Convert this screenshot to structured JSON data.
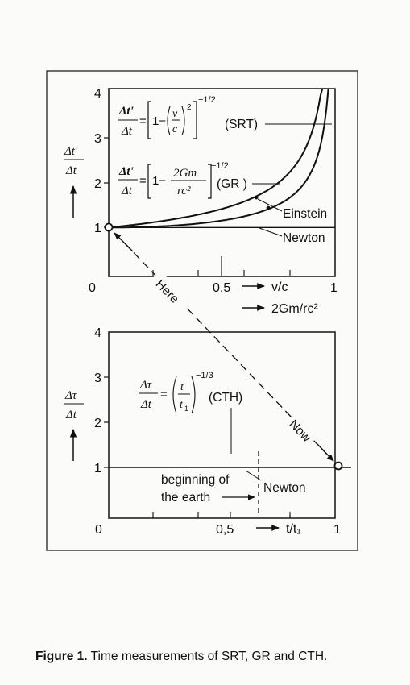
{
  "caption": {
    "label": "Figure 1.",
    "text": "Time measurements of SRT, GR and CTH."
  },
  "chart_data": [
    {
      "type": "line",
      "xlim": [
        0,
        1
      ],
      "ylim": [
        0,
        4
      ],
      "x_ticks": [
        "0",
        "0,5",
        "1"
      ],
      "y_ticks": [
        "1",
        "2",
        "3",
        "4"
      ],
      "ylabel_num": "Δt'",
      "ylabel_den": "Δt",
      "xlabel_1": "v/c",
      "xlabel_2": "2Gm/rc²",
      "series": [
        {
          "name": "SRT",
          "formula": "Δt'/Δt = [1 − (v/c)²]^−1/2",
          "x": [
            0,
            0.2,
            0.4,
            0.6,
            0.7,
            0.8,
            0.9,
            0.95,
            0.98
          ],
          "y": [
            1.0,
            1.021,
            1.091,
            1.25,
            1.4,
            1.667,
            2.294,
            3.203,
            5.025
          ]
        },
        {
          "name": "GR",
          "formula": "Δt'/Δt = [1 − 2Gm/rc²]^−1/2",
          "x": [
            0,
            0.2,
            0.4,
            0.6,
            0.7,
            0.8,
            0.9,
            0.95,
            0.98
          ],
          "y": [
            1.0,
            1.118,
            1.291,
            1.581,
            1.826,
            2.236,
            3.162,
            4.472,
            7.071
          ]
        },
        {
          "name": "Newton",
          "x": [
            0,
            1
          ],
          "y": [
            1,
            1
          ]
        }
      ],
      "annotations": {
        "srt": "(SRT)",
        "gr": "(GR )",
        "einstein": "Einstein",
        "newton": "Newton"
      },
      "formula_srt": {
        "lhs_num": "Δt'",
        "lhs_den": "Δt",
        "eq": "=",
        "one": "1−",
        "v": "v",
        "c": "c",
        "sq": "2",
        "exp": "−1/2"
      },
      "formula_gr": {
        "lhs_num": "Δt'",
        "lhs_den": "Δt",
        "eq": "=",
        "one": "1−",
        "num": "2Gm",
        "den": "rc²",
        "exp": "−1/2"
      }
    },
    {
      "type": "line",
      "xlim": [
        0,
        1
      ],
      "ylim": [
        0,
        4
      ],
      "x_ticks": [
        "0",
        "0,5",
        "1"
      ],
      "y_ticks": [
        "1",
        "2",
        "3",
        "4"
      ],
      "ylabel_num": "Δτ",
      "ylabel_den": "Δt",
      "xlabel": "t/t₁",
      "series": [
        {
          "name": "CTH",
          "formula": "Δτ/Δt = (t/t₁)^−1/3",
          "x": [
            0.016,
            0.03,
            0.05,
            0.1,
            0.2,
            0.3,
            0.5,
            0.7,
            1.0
          ],
          "y": [
            3.97,
            3.22,
            2.71,
            2.15,
            1.71,
            1.49,
            1.26,
            1.13,
            1.0
          ]
        },
        {
          "name": "Newton",
          "x": [
            0,
            1
          ],
          "y": [
            1,
            1
          ]
        }
      ],
      "annotations": {
        "cth": "(CTH)",
        "newton": "Newton",
        "beginning_1": "beginning of",
        "beginning_2": "the earth"
      },
      "formula_cth": {
        "lhs_num": "Δτ",
        "lhs_den": "Δt",
        "eq": "=",
        "t": "t",
        "t1": "t",
        "t1_sub": "1",
        "exp": "−1/3"
      }
    }
  ],
  "connector": {
    "here": "Here",
    "now": "Now"
  }
}
